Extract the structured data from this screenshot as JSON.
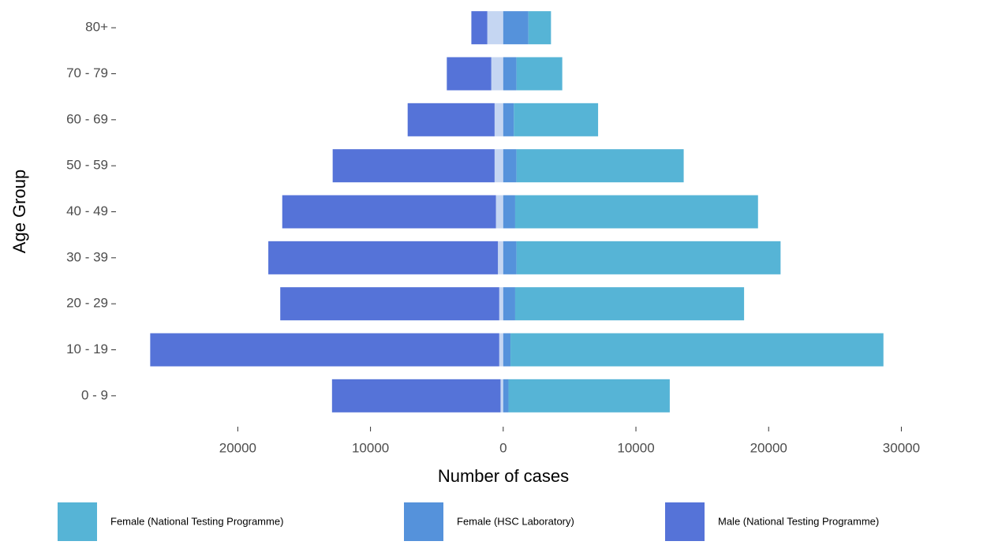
{
  "chart_data": {
    "type": "bar",
    "orientation": "horizontal",
    "stacked": true,
    "x_label": "Number of cases",
    "y_label": "Age Group",
    "categories": [
      "0 - 9",
      "10 - 19",
      "20 - 29",
      "30 - 39",
      "40 - 49",
      "50 - 59",
      "60 - 69",
      "70 - 79",
      "80+"
    ],
    "series": [
      {
        "name": "Female (National Testing Programme)",
        "color": "#56b4d6",
        "values": [
          12150,
          28100,
          17250,
          19900,
          18300,
          12600,
          6350,
          3450,
          1700
        ]
      },
      {
        "name": "Female (HSC Laboratory)",
        "color": "#5592db",
        "values": [
          400,
          550,
          900,
          1000,
          900,
          1000,
          800,
          1000,
          1900
        ]
      },
      {
        "name": "Male (National Testing Programme)",
        "color": "#5573d8",
        "values": [
          -12700,
          -26300,
          -16500,
          -17300,
          -16100,
          -12200,
          -6550,
          -3350,
          -1200
        ]
      },
      {
        "color": "#c5d6f2",
        "values": [
          -200,
          -300,
          -300,
          -400,
          -550,
          -650,
          -650,
          -900,
          -1200
        ]
      }
    ],
    "xlim": [
      -29000,
      35800
    ],
    "xticks": [
      {
        "value": -20000,
        "label": "20000"
      },
      {
        "value": -10000,
        "label": "10000"
      },
      0,
      10000,
      20000,
      30000
    ],
    "grid": false
  }
}
